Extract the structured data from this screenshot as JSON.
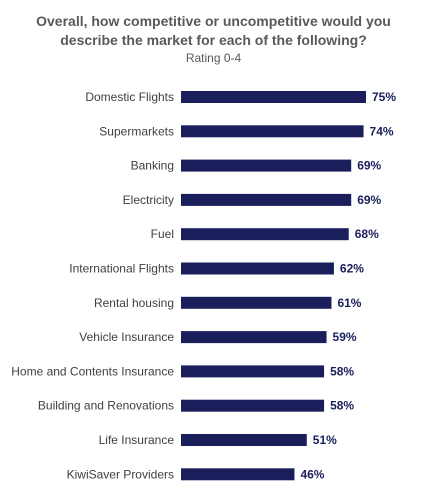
{
  "chart_data": {
    "type": "bar",
    "orientation": "horizontal",
    "title_lines": [
      "Overall, how competitive or uncompetitive would you",
      "describe the market for each of the following?"
    ],
    "subtitle": "Rating 0-4",
    "categories": [
      "Domestic Flights",
      "Supermarkets",
      "Banking",
      "Electricity",
      "Fuel",
      "International Flights",
      "Rental housing",
      "Vehicle Insurance",
      "Home and Contents Insurance",
      "Building and Renovations",
      "Life Insurance",
      "KiwiSaver Providers"
    ],
    "values": [
      75,
      74,
      69,
      69,
      68,
      62,
      61,
      59,
      58,
      58,
      51,
      46
    ],
    "value_labels": [
      "75%",
      "74%",
      "69%",
      "69%",
      "68%",
      "62%",
      "61%",
      "59%",
      "58%",
      "58%",
      "51%",
      "46%"
    ],
    "xlim": [
      0,
      75
    ],
    "grid": false,
    "legend": "none",
    "bar_color": "#1a1f5c",
    "label_color": "#404040",
    "value_label_color": "#1a1f5c"
  }
}
